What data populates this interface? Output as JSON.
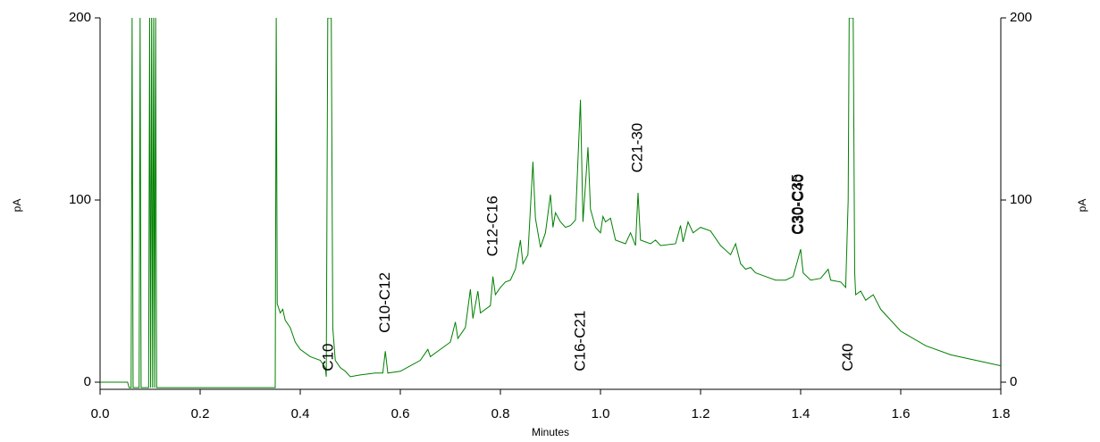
{
  "chart_data": {
    "type": "line",
    "xlabel": "Minutes",
    "ylabel": "pA",
    "y2label": "pA",
    "xlim": [
      0,
      1.8
    ],
    "xticks": [
      {
        "value": 0,
        "label": "0.0"
      },
      0.2,
      0.4,
      0.6,
      0.8,
      {
        "value": 1,
        "label": "1.0"
      },
      1.2,
      1.4,
      1.6,
      1.8
    ],
    "ylim": [
      0,
      200
    ],
    "yticks": [
      0,
      100,
      200
    ],
    "y2lim": [
      0,
      200
    ],
    "y2ticks": [
      0,
      100,
      200
    ],
    "x": [
      0.0,
      0.055,
      0.058,
      0.062,
      0.064,
      0.066,
      0.078,
      0.08,
      0.082,
      0.097,
      0.099,
      0.101,
      0.103,
      0.105,
      0.107,
      0.109,
      0.111,
      0.113,
      0.35,
      0.352,
      0.354,
      0.36,
      0.365,
      0.37,
      0.38,
      0.39,
      0.4,
      0.42,
      0.44,
      0.45,
      0.452,
      0.455,
      0.458,
      0.46,
      0.462,
      0.465,
      0.47,
      0.48,
      0.49,
      0.5,
      0.52,
      0.55,
      0.565,
      0.57,
      0.575,
      0.6,
      0.62,
      0.64,
      0.655,
      0.66,
      0.68,
      0.7,
      0.71,
      0.715,
      0.73,
      0.74,
      0.745,
      0.755,
      0.76,
      0.78,
      0.785,
      0.79,
      0.8,
      0.81,
      0.82,
      0.83,
      0.84,
      0.845,
      0.855,
      0.865,
      0.87,
      0.88,
      0.89,
      0.9,
      0.905,
      0.91,
      0.92,
      0.93,
      0.94,
      0.95,
      0.96,
      0.965,
      0.975,
      0.98,
      0.99,
      1.0,
      1.005,
      1.01,
      1.02,
      1.03,
      1.05,
      1.06,
      1.07,
      1.075,
      1.08,
      1.1,
      1.11,
      1.12,
      1.15,
      1.16,
      1.165,
      1.175,
      1.185,
      1.2,
      1.22,
      1.24,
      1.26,
      1.27,
      1.28,
      1.29,
      1.3,
      1.31,
      1.33,
      1.35,
      1.37,
      1.385,
      1.4,
      1.405,
      1.42,
      1.44,
      1.455,
      1.46,
      1.48,
      1.49,
      1.495,
      1.497,
      1.505,
      1.508,
      1.51,
      1.52,
      1.53,
      1.545,
      1.56,
      1.6,
      1.65,
      1.7,
      1.75,
      1.8
    ],
    "series": [
      {
        "color": "#008000",
        "values": [
          0,
          0,
          -3,
          -3,
          200,
          -3,
          -3,
          200,
          -3,
          -3,
          200,
          -3,
          200,
          -3,
          200,
          -3,
          200,
          -3,
          -3,
          200,
          43,
          38,
          40,
          34,
          30,
          22,
          18,
          14,
          12,
          8,
          3,
          200,
          200,
          200,
          200,
          30,
          12,
          8,
          6,
          3,
          4,
          5,
          5,
          17,
          5,
          6,
          9,
          12,
          18,
          14,
          18,
          22,
          33,
          24,
          30,
          51,
          35,
          50,
          38,
          42,
          58,
          48,
          52,
          55,
          56,
          62,
          78,
          65,
          70,
          121,
          90,
          74,
          82,
          103,
          85,
          93,
          88,
          85,
          86,
          89,
          155,
          88,
          129,
          95,
          85,
          82,
          91,
          88,
          90,
          78,
          76,
          82,
          75,
          104,
          78,
          76,
          78,
          75,
          76,
          86,
          77,
          88,
          82,
          85,
          83,
          75,
          70,
          76,
          65,
          62,
          63,
          60,
          58,
          56,
          56,
          58,
          73,
          60,
          56,
          57,
          62,
          56,
          55,
          52,
          100,
          200,
          200,
          60,
          48,
          50,
          45,
          48,
          40,
          28,
          20,
          15,
          12,
          9
        ]
      }
    ],
    "annotations": [
      {
        "text": "C10",
        "x": 0.457,
        "y": 6
      },
      {
        "text": "C10-C12",
        "x": 0.571,
        "y": 27
      },
      {
        "text": "C12-C16",
        "x": 0.786,
        "y": 69
      },
      {
        "text": "C16-C21",
        "x": 0.961,
        "y": 6
      },
      {
        "text": "C21-30",
        "x": 1.075,
        "y": 115
      },
      {
        "text": "C30-C35",
        "x": 1.395,
        "y": 81
      },
      {
        "text": "C30-C40",
        "x": 1.397,
        "y": 81
      },
      {
        "text": "C40",
        "x": 1.496,
        "y": 6
      }
    ]
  }
}
